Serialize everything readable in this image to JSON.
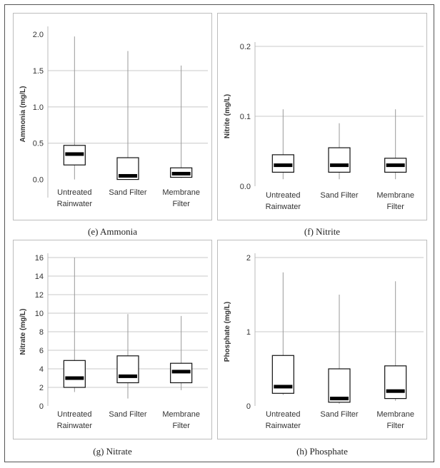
{
  "chart_data": [
    {
      "type": "box",
      "caption": "(e) Ammonia",
      "ylabel": "Ammonia (mg/L)",
      "ylim": [
        -0.25,
        2.05
      ],
      "yticks": [
        "0.0",
        "0.5",
        "1.0",
        "1.5",
        "2.0"
      ],
      "ytick_values": [
        0.0,
        0.5,
        1.0,
        1.5,
        2.0
      ],
      "gridlines": [
        0.5,
        1.0,
        1.5
      ],
      "categories": [
        [
          "Untreated",
          "Rainwater"
        ],
        [
          "Sand Filter"
        ],
        [
          "Membrane",
          "Filter"
        ]
      ],
      "boxes": [
        {
          "min": 0.0,
          "q1": 0.2,
          "median": 0.35,
          "q3": 0.47,
          "max": 1.97
        },
        {
          "min": 0.0,
          "q1": 0.0,
          "median": 0.05,
          "q3": 0.3,
          "max": 1.77
        },
        {
          "min": 0.02,
          "q1": 0.03,
          "median": 0.08,
          "q3": 0.16,
          "max": 1.57
        }
      ]
    },
    {
      "type": "box",
      "caption": "(f) Nitrite",
      "ylabel": "Nitrite (mg/L)",
      "ylim": [
        0.0,
        0.2
      ],
      "yticks": [
        "0.0",
        "0.1",
        "0.2"
      ],
      "ytick_values": [
        0.0,
        0.1,
        0.2
      ],
      "gridlines": [
        0.1,
        0.2
      ],
      "categories": [
        [
          "Untreated",
          "Rainwater"
        ],
        [
          "Sand Filter"
        ],
        [
          "Membrane",
          "Filter"
        ]
      ],
      "boxes": [
        {
          "min": 0.01,
          "q1": 0.02,
          "median": 0.03,
          "q3": 0.045,
          "max": 0.11
        },
        {
          "min": 0.01,
          "q1": 0.02,
          "median": 0.03,
          "q3": 0.055,
          "max": 0.09
        },
        {
          "min": 0.01,
          "q1": 0.02,
          "median": 0.03,
          "q3": 0.04,
          "max": 0.11
        }
      ]
    },
    {
      "type": "box",
      "caption": "(g) Nitrate",
      "ylabel": "Nitrate (mg/L)",
      "ylim": [
        0,
        16
      ],
      "yticks": [
        "0",
        "2",
        "4",
        "6",
        "8",
        "10",
        "12",
        "14",
        "16"
      ],
      "ytick_values": [
        0,
        2,
        4,
        6,
        8,
        10,
        12,
        14,
        16
      ],
      "gridlines": [
        2,
        4,
        6,
        8,
        10,
        12,
        14,
        16
      ],
      "categories": [
        [
          "Untreated",
          "Rainwater"
        ],
        [
          "Sand Filter"
        ],
        [
          "Membrane",
          "Filter"
        ]
      ],
      "boxes": [
        {
          "min": 1.5,
          "q1": 2.0,
          "median": 3.0,
          "q3": 4.9,
          "max": 16.0
        },
        {
          "min": 0.8,
          "q1": 2.5,
          "median": 3.2,
          "q3": 5.4,
          "max": 9.9
        },
        {
          "min": 1.7,
          "q1": 2.5,
          "median": 3.7,
          "q3": 4.6,
          "max": 9.7
        }
      ]
    },
    {
      "type": "box",
      "caption": "(h) Phosphate",
      "ylabel": "Phosphate (mg/L)",
      "ylim": [
        0,
        2
      ],
      "yticks": [
        "0",
        "1",
        "2"
      ],
      "ytick_values": [
        0,
        1,
        2
      ],
      "gridlines": [
        1,
        2
      ],
      "categories": [
        [
          "Untreated",
          "Rainwater"
        ],
        [
          "Sand Filter"
        ],
        [
          "Membrane",
          "Filter"
        ]
      ],
      "boxes": [
        {
          "min": 0.15,
          "q1": 0.17,
          "median": 0.26,
          "q3": 0.68,
          "max": 1.8
        },
        {
          "min": 0.03,
          "q1": 0.05,
          "median": 0.1,
          "q3": 0.5,
          "max": 1.5
        },
        {
          "min": 0.07,
          "q1": 0.1,
          "median": 0.2,
          "q3": 0.54,
          "max": 1.68
        }
      ]
    }
  ]
}
